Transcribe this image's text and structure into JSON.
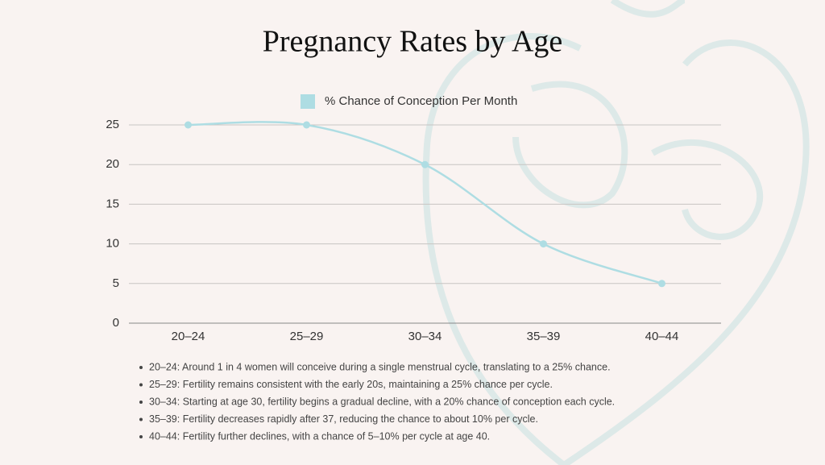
{
  "chart_data": {
    "type": "line",
    "title": "Pregnancy Rates by Age",
    "categories": [
      "20–24",
      "25–29",
      "30–34",
      "35–39",
      "40–44"
    ],
    "series": [
      {
        "name": "% Chance of Conception Per Month",
        "color": "#aedde3",
        "values": [
          25,
          25,
          20,
          10,
          5
        ]
      }
    ],
    "ylim": [
      0,
      25
    ],
    "yticks": [
      0,
      5,
      10,
      15,
      20,
      25
    ],
    "grid": true,
    "legend": "top",
    "notes": [
      "20–24: Around 1 in 4 women will conceive during a single menstrual cycle, translating to a 25% chance.",
      "25–29: Fertility remains consistent with the early 20s, maintaining a 25% chance per cycle.",
      "30–34: Starting at age 30, fertility begins a gradual decline, with a 20% chance of conception each cycle.",
      "35–39: Fertility decreases rapidly after 37, reducing the chance to about 10% per cycle.",
      "40–44: Fertility further declines, with a chance of 5–10% per cycle at age 40."
    ]
  }
}
